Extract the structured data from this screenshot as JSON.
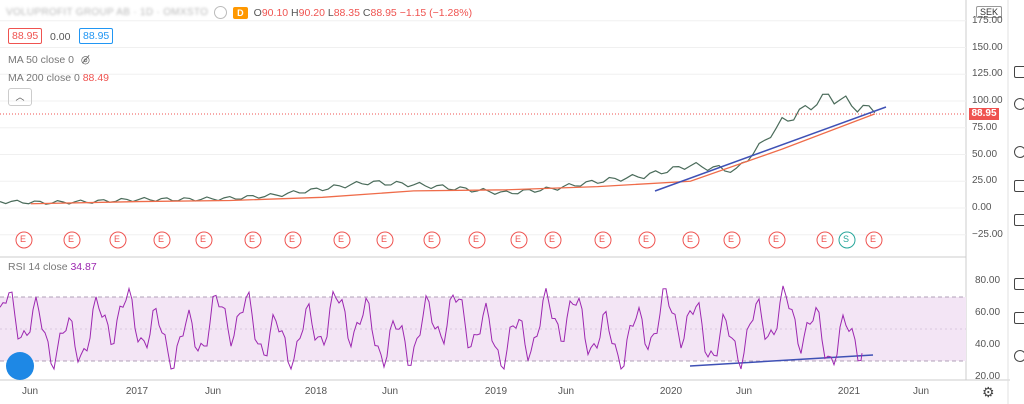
{
  "header": {
    "symbol_text": "VOLUPROFIT GROUP AB · 1D · OMXSTO",
    "interval": "D",
    "ohlc": {
      "o_label": "O",
      "o": "90.10",
      "h_label": "H",
      "h": "90.20",
      "l_label": "L",
      "l": "88.35",
      "c_label": "C",
      "c": "88.95",
      "change": "−1.15 (−1.28%)"
    },
    "bid": "88.95",
    "spread": "0.00",
    "ask": "88.95"
  },
  "indicators": {
    "ma50": {
      "label": "MA 50 close 0",
      "value": ""
    },
    "ma200": {
      "label": "MA 200 close 0",
      "value": "88.49"
    },
    "rsi": {
      "label": "RSI 14 close",
      "value": "34.87"
    }
  },
  "currency": "SEK",
  "last_price": "88.95",
  "colors": {
    "price_down": "#ef5350",
    "price_up": "#26a69a",
    "ma200": "#ef6c4a",
    "trendline": "#3f51b5",
    "rsi": "#9c27b0",
    "rsi_band": "#f3e5f5"
  },
  "price_axis": [
    "175.00",
    "150.00",
    "125.00",
    "100.00",
    "75.00",
    "50.00",
    "25.00",
    "0.00",
    "−25.00"
  ],
  "rsi_axis": [
    "80.00",
    "60.00",
    "40.00",
    "20.00"
  ],
  "x_axis": [
    "Jun",
    "2017",
    "Jun",
    "2018",
    "Jun",
    "2019",
    "Jun",
    "2020",
    "Jun",
    "2021",
    "Jun"
  ],
  "events": [
    {
      "l": "E"
    },
    {
      "l": "E"
    },
    {
      "l": "E"
    },
    {
      "l": "E"
    },
    {
      "l": "E"
    },
    {
      "l": "E"
    },
    {
      "l": "E"
    },
    {
      "l": "E"
    },
    {
      "l": "E"
    },
    {
      "l": "E"
    },
    {
      "l": "E"
    },
    {
      "l": "E"
    },
    {
      "l": "E"
    },
    {
      "l": "E"
    },
    {
      "l": "E"
    },
    {
      "l": "E"
    },
    {
      "l": "E"
    },
    {
      "l": "E"
    },
    {
      "l": "E"
    },
    {
      "l": "S"
    },
    {
      "l": "E"
    }
  ],
  "chart_data": {
    "type": "line",
    "series": [
      {
        "name": "price",
        "x": [
          "2016-04",
          "2016-07",
          "2016-10",
          "2017-01",
          "2017-04",
          "2017-07",
          "2017-10",
          "2018-01",
          "2018-04",
          "2018-07",
          "2018-10",
          "2019-01",
          "2019-04",
          "2019-07",
          "2019-10",
          "2020-01",
          "2020-04",
          "2020-07",
          "2020-10",
          "2021-01"
        ],
        "values": [
          6,
          5,
          6,
          8,
          8,
          9,
          12,
          18,
          24,
          22,
          18,
          14,
          18,
          25,
          30,
          40,
          35,
          80,
          105,
          89
        ]
      },
      {
        "name": "MA 200",
        "x": [
          "2016-06",
          "2017-01",
          "2017-07",
          "2018-01",
          "2018-07",
          "2019-01",
          "2019-07",
          "2020-01",
          "2020-07",
          "2021-01"
        ],
        "values": [
          4,
          6,
          7,
          10,
          16,
          17,
          20,
          25,
          55,
          88
        ]
      }
    ],
    "rsi": {
      "label": "RSI 14 close",
      "band": [
        30,
        70
      ],
      "last": 34.87
    }
  }
}
